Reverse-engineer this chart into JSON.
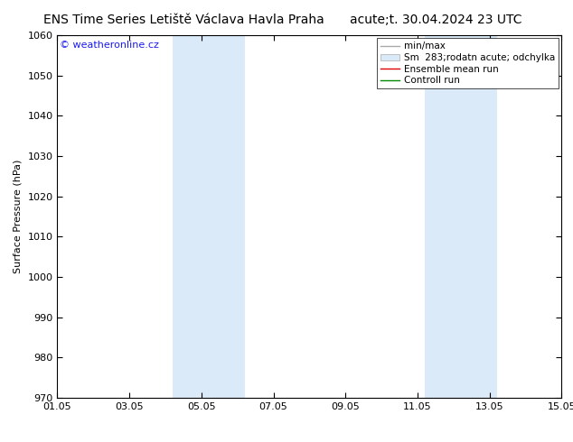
{
  "title_left": "ENS Time Series Letiště Václava Havla Praha",
  "title_right": "acute;t. 30.04.2024 23 UTC",
  "ylabel": "Surface Pressure (hPa)",
  "ylim": [
    970,
    1060
  ],
  "yticks": [
    970,
    980,
    990,
    1000,
    1010,
    1020,
    1030,
    1040,
    1050,
    1060
  ],
  "xlim_start": 0,
  "xlim_end": 14,
  "xtick_labels": [
    "01.05",
    "03.05",
    "05.05",
    "07.05",
    "09.05",
    "11.05",
    "13.05",
    "15.05"
  ],
  "xtick_positions": [
    0,
    2,
    4,
    6,
    8,
    10,
    12,
    14
  ],
  "weekend_bands": [
    {
      "x_start": 3.2,
      "x_end": 5.2
    },
    {
      "x_start": 10.2,
      "x_end": 12.2
    }
  ],
  "band_color": "#daeaf8",
  "copyright_text": "© weatheronline.cz",
  "copyright_color": "#1a1aee",
  "legend_labels": [
    "min/max",
    "Sm  283;rodatn acute; odchylka",
    "Ensemble mean run",
    "Controll run"
  ],
  "legend_line_colors": [
    "#aaaaaa",
    "#bbccdd",
    "#dd0000",
    "#008800"
  ],
  "bg_color": "#ffffff",
  "plot_bg_color": "#ffffff",
  "title_fontsize": 10,
  "axis_label_fontsize": 8,
  "tick_fontsize": 8,
  "legend_fontsize": 7.5,
  "copyright_fontsize": 8
}
